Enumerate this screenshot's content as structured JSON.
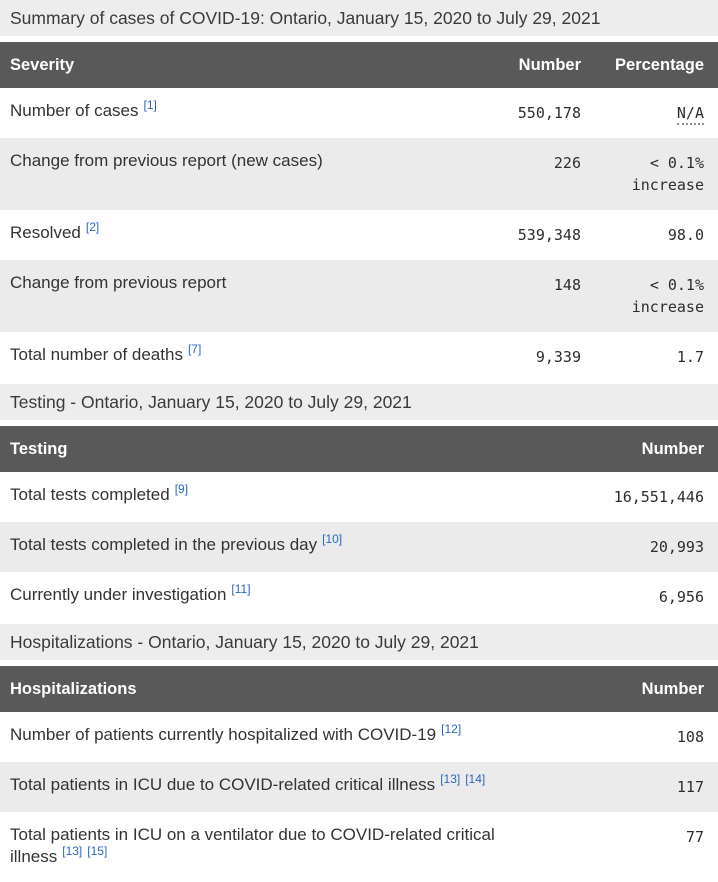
{
  "colors": {
    "header_background": "#595959",
    "header_text": "#ffffff",
    "caption_background": "#ededed",
    "stripe_row_background": "#ebebeb",
    "footnote_link": "#2b66c2",
    "body_text": "#333333"
  },
  "sections": [
    {
      "caption": "Summary of cases of COVID-19: Ontario, January 15, 2020 to July 29, 2021",
      "columns": [
        "Severity",
        "Number",
        "Percentage"
      ],
      "rows": [
        {
          "label": "Number of cases",
          "footnotes": [
            "[1]"
          ],
          "number": "550,178",
          "percentage": "N/A",
          "percentage_abbr": true
        },
        {
          "label": "Change from previous report (new cases)",
          "footnotes": [],
          "number": "226",
          "percentage": "< 0.1% increase"
        },
        {
          "label": "Resolved",
          "footnotes": [
            "[2]"
          ],
          "number": "539,348",
          "percentage": "98.0"
        },
        {
          "label": "Change from previous report",
          "footnotes": [],
          "number": "148",
          "percentage": "< 0.1% increase"
        },
        {
          "label": "Total number of deaths",
          "footnotes": [
            "[7]"
          ],
          "number": "9,339",
          "percentage": "1.7"
        }
      ]
    },
    {
      "caption": "Testing - Ontario, January 15, 2020 to July 29, 2021",
      "columns": [
        "Testing",
        "Number"
      ],
      "rows": [
        {
          "label": "Total tests completed",
          "footnotes": [
            "[9]"
          ],
          "number": "16,551,446"
        },
        {
          "label": "Total tests completed in the previous day",
          "footnotes": [
            "[10]"
          ],
          "number": "20,993"
        },
        {
          "label": "Currently under investigation",
          "footnotes": [
            "[11]"
          ],
          "number": "6,956"
        }
      ]
    },
    {
      "caption": "Hospitalizations - Ontario, January 15, 2020 to July 29, 2021",
      "columns": [
        "Hospitalizations",
        "Number"
      ],
      "rows": [
        {
          "label": "Number of patients currently hospitalized with COVID-19",
          "footnotes": [
            "[12]"
          ],
          "number": "108"
        },
        {
          "label": "Total patients in ICU due to COVID-related critical illness",
          "footnotes": [
            "[13]",
            "[14]"
          ],
          "number": "117"
        },
        {
          "label": "Total patients in ICU on a ventilator due to COVID-related critical illness",
          "footnotes": [
            "[13]",
            "[15]"
          ],
          "number": "77"
        }
      ]
    }
  ]
}
